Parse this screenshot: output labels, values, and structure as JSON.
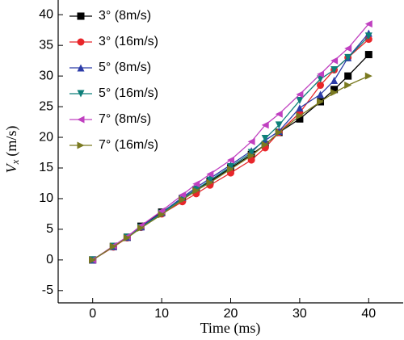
{
  "chart_data": {
    "type": "line",
    "x_label": "Time (ms)",
    "y_label": "V",
    "y_label_sub": "x",
    "y_label_unit": "(m/s)",
    "x": [
      0,
      3,
      5,
      7,
      10,
      13,
      15,
      17,
      20,
      23,
      25,
      27,
      30,
      33,
      35,
      37,
      40
    ],
    "xlim": [
      -5,
      45
    ],
    "xticks": [
      0,
      10,
      20,
      30,
      40
    ],
    "ylim": [
      -7,
      42.4
    ],
    "yticks": [
      -5,
      0,
      5,
      10,
      15,
      20,
      25,
      30,
      35,
      40
    ],
    "legend": "upper-left",
    "series": [
      {
        "name": "3° (8m/s)",
        "color": "#000000",
        "marker": "square",
        "values": [
          0,
          2.2,
          3.7,
          5.5,
          7.8,
          10,
          11.5,
          12.8,
          15,
          17.2,
          18.8,
          20.8,
          23,
          25.8,
          27.8,
          30,
          33.5
        ]
      },
      {
        "name": "3° (16m/s)",
        "color": "#e8262a",
        "marker": "circle",
        "values": [
          0,
          2.1,
          3.6,
          5.3,
          7.5,
          9.5,
          10.8,
          12.2,
          14.2,
          16.3,
          18.3,
          20.8,
          24,
          28.5,
          31,
          33,
          36
        ]
      },
      {
        "name": "5° (8m/s)",
        "color": "#2c3ca8",
        "marker": "triangle-up",
        "values": [
          0,
          2.2,
          3.7,
          5.4,
          7.7,
          10.2,
          11.8,
          13.3,
          15.5,
          17.8,
          19.5,
          21,
          24.8,
          27,
          29.3,
          33,
          37
        ]
      },
      {
        "name": "5° (16m/s)",
        "color": "#0e7f7a",
        "marker": "triangle-down",
        "values": [
          0,
          2.2,
          3.7,
          5.3,
          7.6,
          10,
          11.5,
          13,
          15.2,
          17.5,
          19.8,
          22,
          26,
          29.5,
          31,
          33,
          36.5
        ]
      },
      {
        "name": "7° (8m/s)",
        "color": "#c040c0",
        "marker": "triangle-left",
        "values": [
          0,
          2.3,
          3.8,
          5.6,
          8,
          10.6,
          12.4,
          14,
          16.3,
          19.3,
          22,
          23.8,
          27,
          30.3,
          32.5,
          34.5,
          38.5
        ]
      },
      {
        "name": "7° (16m/s)",
        "color": "#7a7a20",
        "marker": "triangle-right",
        "values": [
          0,
          2.2,
          3.6,
          5.2,
          7.4,
          9.8,
          11.3,
          12.6,
          14.8,
          17,
          18.8,
          20.8,
          23.5,
          25.8,
          27.3,
          28.5,
          30
        ]
      }
    ]
  }
}
